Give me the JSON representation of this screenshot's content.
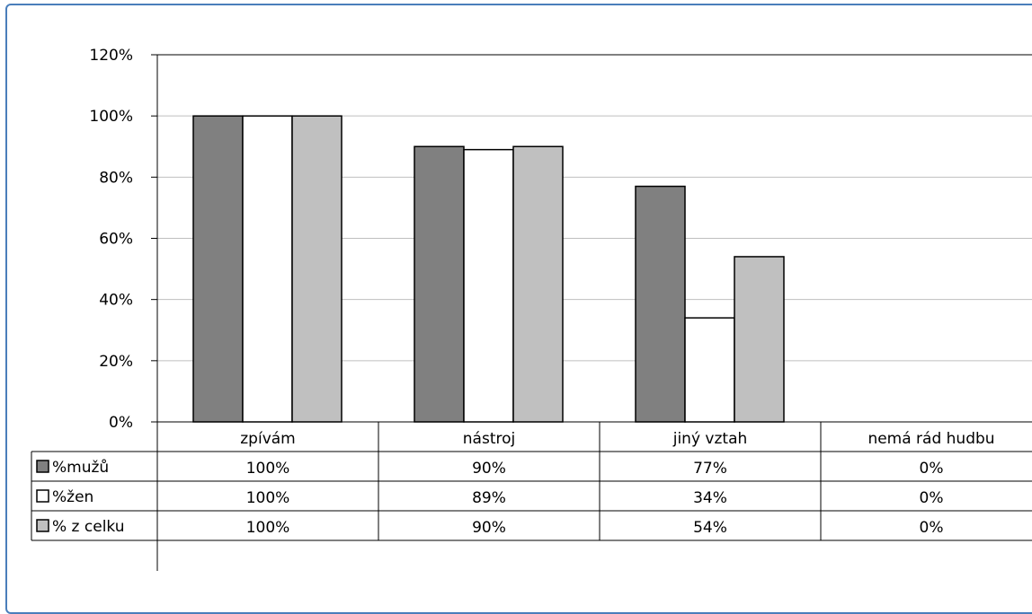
{
  "chart_data": {
    "type": "bar",
    "categories": [
      "zpívám",
      "nástroj",
      "jiný vztah",
      "nemá rád hudbu"
    ],
    "series": [
      {
        "name": "%mužů",
        "values": [
          100,
          90,
          77,
          0
        ],
        "labels": [
          "100%",
          "90%",
          "77%",
          "0%"
        ],
        "color": "#808080"
      },
      {
        "name": "%žen",
        "values": [
          100,
          89,
          34,
          0
        ],
        "labels": [
          "100%",
          "89%",
          "34%",
          "0%"
        ],
        "color": "#ffffff"
      },
      {
        "name": "% z celku",
        "values": [
          100,
          90,
          54,
          0
        ],
        "labels": [
          "100%",
          "90%",
          "54%",
          "0%"
        ],
        "color": "#c0c0c0"
      }
    ],
    "yticks": [
      "0%",
      "20%",
      "40%",
      "60%",
      "80%",
      "100%",
      "120%"
    ],
    "ylim": [
      0,
      120
    ],
    "grid": true,
    "legend": "data-table"
  }
}
